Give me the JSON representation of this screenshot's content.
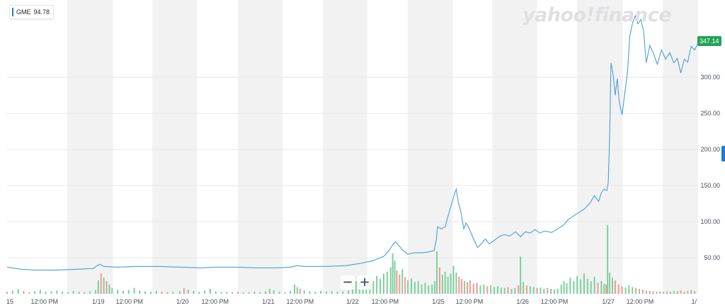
{
  "legend": {
    "symbol": "GME",
    "value": "94.78"
  },
  "watermark": "yahoo!finance",
  "zoom": {
    "minus": "−",
    "plus": "+"
  },
  "last_price": "347.14",
  "colors": {
    "line": "#4a9fd8",
    "tag": "#21a356",
    "up": "#7fcf9d",
    "down": "#f29898",
    "band": "#f2f2f2",
    "grid": "#e8e8e8",
    "scroll": "#1c7bd6"
  },
  "chart_data": {
    "type": "line",
    "series": [
      {
        "name": "GME"
      }
    ],
    "x_range": [
      0,
      1
    ],
    "y_range": [
      0,
      407
    ],
    "y_ticks": [
      50,
      100,
      150,
      200,
      250,
      300
    ],
    "y_tick_labels": [
      "50.00",
      "100.00",
      "150.00",
      "200.00",
      "250.00",
      "300.00"
    ],
    "x_tick_labels": [
      "15",
      "12:00 PM",
      "1/19",
      "12:00 PM",
      "1/20",
      "12:00 PM",
      "1/21",
      "12:00 PM",
      "1/22",
      "12:00 PM",
      "1/25",
      "12:00 PM",
      "1/26",
      "12:00 PM",
      "1/27",
      "12:00 PM",
      "1/"
    ],
    "x_tick_pos": [
      0.002,
      0.054,
      0.132,
      0.177,
      0.254,
      0.301,
      0.378,
      0.424,
      0.5,
      0.547,
      0.624,
      0.669,
      0.746,
      0.792,
      0.87,
      0.916,
      0.998
    ],
    "price": [
      [
        0.0,
        37
      ],
      [
        0.02,
        34
      ],
      [
        0.04,
        33
      ],
      [
        0.07,
        33
      ],
      [
        0.1,
        34
      ],
      [
        0.125,
        35
      ],
      [
        0.13,
        39
      ],
      [
        0.135,
        41
      ],
      [
        0.14,
        38
      ],
      [
        0.16,
        37
      ],
      [
        0.19,
        38
      ],
      [
        0.22,
        38
      ],
      [
        0.25,
        37
      ],
      [
        0.28,
        36
      ],
      [
        0.3,
        37
      ],
      [
        0.33,
        37
      ],
      [
        0.36,
        36
      ],
      [
        0.39,
        36
      ],
      [
        0.41,
        37
      ],
      [
        0.42,
        39
      ],
      [
        0.43,
        38
      ],
      [
        0.46,
        38
      ],
      [
        0.49,
        39
      ],
      [
        0.51,
        42
      ],
      [
        0.53,
        46
      ],
      [
        0.545,
        52
      ],
      [
        0.553,
        60
      ],
      [
        0.558,
        68
      ],
      [
        0.562,
        72
      ],
      [
        0.566,
        68
      ],
      [
        0.572,
        61
      ],
      [
        0.58,
        55
      ],
      [
        0.59,
        57
      ],
      [
        0.6,
        57
      ],
      [
        0.61,
        58
      ],
      [
        0.618,
        60
      ],
      [
        0.621,
        74
      ],
      [
        0.623,
        93
      ],
      [
        0.628,
        90
      ],
      [
        0.634,
        93
      ],
      [
        0.64,
        114
      ],
      [
        0.645,
        130
      ],
      [
        0.648,
        140
      ],
      [
        0.65,
        145
      ],
      [
        0.653,
        127
      ],
      [
        0.657,
        112
      ],
      [
        0.661,
        90
      ],
      [
        0.664,
        98
      ],
      [
        0.667,
        94
      ],
      [
        0.672,
        83
      ],
      [
        0.676,
        74
      ],
      [
        0.681,
        64
      ],
      [
        0.687,
        70
      ],
      [
        0.692,
        76
      ],
      [
        0.698,
        69
      ],
      [
        0.705,
        74
      ],
      [
        0.713,
        80
      ],
      [
        0.72,
        82
      ],
      [
        0.727,
        80
      ],
      [
        0.736,
        86
      ],
      [
        0.743,
        79
      ],
      [
        0.75,
        86
      ],
      [
        0.757,
        84
      ],
      [
        0.764,
        89
      ],
      [
        0.771,
        84
      ],
      [
        0.778,
        87
      ],
      [
        0.788,
        85
      ],
      [
        0.797,
        90
      ],
      [
        0.805,
        95
      ],
      [
        0.812,
        103
      ],
      [
        0.82,
        108
      ],
      [
        0.828,
        113
      ],
      [
        0.836,
        118
      ],
      [
        0.843,
        125
      ],
      [
        0.85,
        136
      ],
      [
        0.856,
        128
      ],
      [
        0.86,
        140
      ],
      [
        0.864,
        145
      ],
      [
        0.868,
        143
      ],
      [
        0.87,
        154
      ],
      [
        0.872,
        220
      ],
      [
        0.874,
        320
      ],
      [
        0.877,
        304
      ],
      [
        0.88,
        275
      ],
      [
        0.883,
        298
      ],
      [
        0.886,
        265
      ],
      [
        0.89,
        248
      ],
      [
        0.894,
        278
      ],
      [
        0.898,
        308
      ],
      [
        0.901,
        356
      ],
      [
        0.905,
        375
      ],
      [
        0.909,
        385
      ],
      [
        0.913,
        374
      ],
      [
        0.917,
        380
      ],
      [
        0.921,
        365
      ],
      [
        0.925,
        320
      ],
      [
        0.93,
        344
      ],
      [
        0.935,
        334
      ],
      [
        0.941,
        318
      ],
      [
        0.947,
        338
      ],
      [
        0.953,
        325
      ],
      [
        0.959,
        334
      ],
      [
        0.965,
        320
      ],
      [
        0.97,
        326
      ],
      [
        0.975,
        306
      ],
      [
        0.98,
        325
      ],
      [
        0.985,
        321
      ],
      [
        0.99,
        343
      ],
      [
        0.995,
        338
      ],
      [
        1.0,
        347
      ]
    ],
    "volume": [
      [
        0.0,
        0.05
      ],
      [
        0.008,
        0.08
      ],
      [
        0.016,
        0.11
      ],
      [
        0.024,
        0.07
      ],
      [
        0.032,
        0.04
      ],
      [
        0.04,
        0.06
      ],
      [
        0.048,
        0.09
      ],
      [
        0.056,
        0.05
      ],
      [
        0.064,
        0.06
      ],
      [
        0.072,
        0.08
      ],
      [
        0.08,
        0.05
      ],
      [
        0.088,
        0.04
      ],
      [
        0.096,
        0.07
      ],
      [
        0.104,
        0.05
      ],
      [
        0.112,
        0.04
      ],
      [
        0.12,
        0.06
      ],
      [
        0.128,
        0.09
      ],
      [
        0.132,
        0.32
      ],
      [
        0.136,
        0.48
      ],
      [
        0.14,
        0.38
      ],
      [
        0.144,
        0.3
      ],
      [
        0.148,
        0.22
      ],
      [
        0.152,
        0.14
      ],
      [
        0.16,
        0.1
      ],
      [
        0.168,
        0.07
      ],
      [
        0.176,
        0.09
      ],
      [
        0.184,
        0.14
      ],
      [
        0.192,
        0.08
      ],
      [
        0.2,
        0.06
      ],
      [
        0.208,
        0.05
      ],
      [
        0.216,
        0.07
      ],
      [
        0.224,
        0.05
      ],
      [
        0.232,
        0.04
      ],
      [
        0.24,
        0.05
      ],
      [
        0.25,
        0.06
      ],
      [
        0.256,
        0.14
      ],
      [
        0.262,
        0.1
      ],
      [
        0.27,
        0.07
      ],
      [
        0.278,
        0.05
      ],
      [
        0.286,
        0.08
      ],
      [
        0.294,
        0.12
      ],
      [
        0.302,
        0.06
      ],
      [
        0.31,
        0.04
      ],
      [
        0.318,
        0.05
      ],
      [
        0.326,
        0.04
      ],
      [
        0.334,
        0.05
      ],
      [
        0.342,
        0.03
      ],
      [
        0.35,
        0.04
      ],
      [
        0.358,
        0.05
      ],
      [
        0.366,
        0.04
      ],
      [
        0.374,
        0.06
      ],
      [
        0.38,
        0.12
      ],
      [
        0.386,
        0.08
      ],
      [
        0.394,
        0.05
      ],
      [
        0.402,
        0.04
      ],
      [
        0.41,
        0.07
      ],
      [
        0.416,
        0.22
      ],
      [
        0.42,
        0.16
      ],
      [
        0.424,
        0.12
      ],
      [
        0.43,
        0.08
      ],
      [
        0.438,
        0.06
      ],
      [
        0.446,
        0.05
      ],
      [
        0.454,
        0.07
      ],
      [
        0.462,
        0.05
      ],
      [
        0.47,
        0.06
      ],
      [
        0.478,
        0.05
      ],
      [
        0.486,
        0.06
      ],
      [
        0.494,
        0.08
      ],
      [
        0.5,
        0.22
      ],
      [
        0.505,
        0.3
      ],
      [
        0.51,
        0.26
      ],
      [
        0.515,
        0.18
      ],
      [
        0.52,
        0.24
      ],
      [
        0.525,
        0.38
      ],
      [
        0.53,
        0.3
      ],
      [
        0.535,
        0.42
      ],
      [
        0.54,
        0.35
      ],
      [
        0.545,
        0.48
      ],
      [
        0.55,
        0.52
      ],
      [
        0.555,
        0.62
      ],
      [
        0.558,
        0.95
      ],
      [
        0.561,
        0.78
      ],
      [
        0.564,
        0.55
      ],
      [
        0.568,
        0.45
      ],
      [
        0.572,
        0.58
      ],
      [
        0.576,
        0.4
      ],
      [
        0.58,
        0.32
      ],
      [
        0.585,
        0.36
      ],
      [
        0.59,
        0.28
      ],
      [
        0.595,
        0.3
      ],
      [
        0.6,
        0.22
      ],
      [
        0.605,
        0.26
      ],
      [
        0.61,
        0.2
      ],
      [
        0.615,
        0.22
      ],
      [
        0.619,
        0.3
      ],
      [
        0.622,
        1.0
      ],
      [
        0.626,
        0.62
      ],
      [
        0.63,
        0.45
      ],
      [
        0.634,
        0.52
      ],
      [
        0.638,
        0.4
      ],
      [
        0.642,
        0.48
      ],
      [
        0.646,
        0.66
      ],
      [
        0.65,
        0.5
      ],
      [
        0.654,
        0.4
      ],
      [
        0.658,
        0.35
      ],
      [
        0.662,
        0.3
      ],
      [
        0.666,
        0.28
      ],
      [
        0.67,
        0.32
      ],
      [
        0.675,
        0.24
      ],
      [
        0.68,
        0.26
      ],
      [
        0.685,
        0.2
      ],
      [
        0.69,
        0.22
      ],
      [
        0.695,
        0.18
      ],
      [
        0.7,
        0.2
      ],
      [
        0.705,
        0.16
      ],
      [
        0.71,
        0.18
      ],
      [
        0.715,
        0.15
      ],
      [
        0.72,
        0.14
      ],
      [
        0.725,
        0.16
      ],
      [
        0.73,
        0.12
      ],
      [
        0.735,
        0.14
      ],
      [
        0.74,
        0.2
      ],
      [
        0.743,
        0.88
      ],
      [
        0.747,
        0.28
      ],
      [
        0.752,
        0.2
      ],
      [
        0.757,
        0.18
      ],
      [
        0.762,
        0.16
      ],
      [
        0.767,
        0.14
      ],
      [
        0.772,
        0.15
      ],
      [
        0.777,
        0.12
      ],
      [
        0.782,
        0.14
      ],
      [
        0.787,
        0.12
      ],
      [
        0.792,
        0.1
      ],
      [
        0.797,
        0.12
      ],
      [
        0.802,
        0.22
      ],
      [
        0.806,
        0.3
      ],
      [
        0.81,
        0.25
      ],
      [
        0.815,
        0.38
      ],
      [
        0.82,
        0.3
      ],
      [
        0.825,
        0.42
      ],
      [
        0.83,
        0.34
      ],
      [
        0.835,
        0.48
      ],
      [
        0.84,
        0.35
      ],
      [
        0.845,
        0.3
      ],
      [
        0.85,
        0.4
      ],
      [
        0.855,
        0.26
      ],
      [
        0.86,
        0.3
      ],
      [
        0.864,
        0.24
      ],
      [
        0.867,
        0.22
      ],
      [
        0.869,
        1.62
      ],
      [
        0.872,
        0.5
      ],
      [
        0.876,
        0.38
      ],
      [
        0.88,
        0.32
      ],
      [
        0.885,
        0.22
      ],
      [
        0.89,
        0.18
      ],
      [
        0.895,
        0.15
      ],
      [
        0.9,
        0.2
      ],
      [
        0.905,
        0.16
      ],
      [
        0.91,
        0.14
      ],
      [
        0.915,
        0.12
      ],
      [
        0.92,
        0.1
      ],
      [
        0.925,
        0.08
      ],
      [
        0.93,
        0.07
      ],
      [
        0.935,
        0.06
      ],
      [
        0.94,
        0.05
      ],
      [
        0.945,
        0.06
      ],
      [
        0.95,
        0.05
      ],
      [
        0.955,
        0.06
      ],
      [
        0.96,
        0.05
      ],
      [
        0.965,
        0.07
      ],
      [
        0.97,
        0.06
      ],
      [
        0.975,
        0.08
      ],
      [
        0.98,
        0.05
      ],
      [
        0.985,
        0.07
      ],
      [
        0.99,
        0.09
      ],
      [
        0.995,
        0.06
      ]
    ]
  }
}
